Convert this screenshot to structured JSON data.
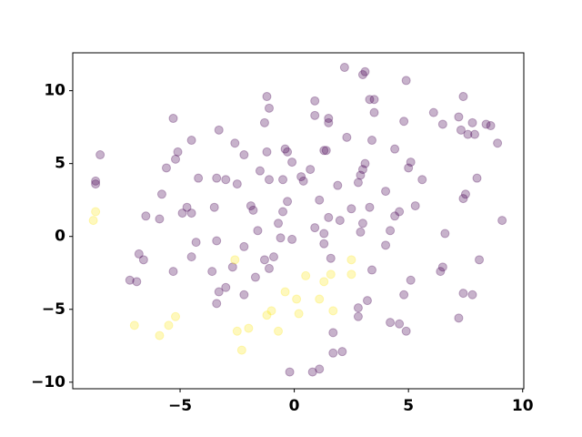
{
  "chart_data": {
    "type": "scatter",
    "xlim": [
      -9.7,
      10.05
    ],
    "ylim": [
      -10.45,
      12.6
    ],
    "xticks": [
      {
        "value": -5,
        "label": "−5"
      },
      0,
      5,
      10
    ],
    "yticks": [
      {
        "value": -10,
        "label": "−10"
      },
      {
        "value": -5,
        "label": "−5"
      },
      0,
      5,
      10
    ],
    "alpha": 0.3,
    "series": [
      {
        "color": "#440154",
        "x": [
          -8.5,
          -8.7,
          -8.7,
          -5.3,
          -4.5,
          -5.2,
          -5.6,
          -5.1,
          -4.2,
          -3.4,
          -3.3,
          -2.6,
          -2.2,
          -3.0,
          -2.5,
          -3.5,
          -4.7,
          -4.9,
          -4.5,
          -6.5,
          -5.8,
          -5.9,
          -6.8,
          -6.6,
          -7.2,
          -6.9,
          -5.3,
          -4.5,
          -4.3,
          -3.6,
          -3.4,
          -3.3,
          -3.4,
          -3.0,
          -2.7,
          -2.2,
          -2.2,
          -1.7,
          -1.3,
          -1.6,
          -1.9,
          -1.8,
          -1.5,
          -1.1,
          -1.2,
          -1.3,
          -1.1,
          -1.2,
          0.9,
          0.9,
          1.5,
          1.5,
          1.4,
          1.3,
          2.3,
          1.9,
          1.1,
          0.7,
          0.4,
          0.3,
          -0.4,
          -0.3,
          -0.1,
          -0.5,
          -0.3,
          -0.5,
          -0.7,
          -0.1,
          -0.6,
          -0.9,
          -1.1,
          1.3,
          1.3,
          1.6,
          0.9,
          1.5,
          2.0,
          2.8,
          2.9,
          3.0,
          3.1,
          3.4,
          3.0,
          3.1,
          3.3,
          3.5,
          3.5,
          2.2,
          4.9,
          4.8,
          4.4,
          5.0,
          5.1,
          4.6,
          4.4,
          4.0,
          4.2,
          3.0,
          2.9,
          3.4,
          3.2,
          2.8,
          2.8,
          1.7,
          1.7,
          2.1,
          1.1,
          0.8,
          -0.2,
          4.2,
          4.6,
          4.9,
          4.8,
          5.1,
          5.3,
          5.6,
          6.1,
          6.5,
          6.6,
          6.5,
          6.4,
          7.2,
          7.3,
          7.4,
          7.6,
          7.8,
          7.9,
          8.4,
          8.6,
          7.5,
          7.4,
          8.0,
          8.9,
          9.1,
          8.1,
          7.4,
          7.8,
          7.2,
          4.0,
          2.5,
          3.3
        ],
        "values": [
          5.6,
          3.8,
          3.6,
          8.1,
          6.6,
          5.3,
          4.7,
          5.8,
          4.0,
          4.0,
          7.3,
          6.4,
          5.6,
          3.9,
          3.6,
          2.0,
          2.0,
          1.6,
          1.6,
          1.4,
          2.9,
          1.2,
          -1.2,
          -1.6,
          -3.0,
          -3.1,
          -2.4,
          -1.4,
          -0.4,
          -2.4,
          -0.3,
          -3.8,
          -4.6,
          -3.5,
          -2.1,
          -0.7,
          -4.0,
          -2.8,
          -1.6,
          0.4,
          2.1,
          1.8,
          4.5,
          3.9,
          5.8,
          7.8,
          8.8,
          9.6,
          9.3,
          8.3,
          7.8,
          8.1,
          5.9,
          5.9,
          6.8,
          3.5,
          2.5,
          4.6,
          3.8,
          4.1,
          6.0,
          5.8,
          5.1,
          3.9,
          2.4,
          1.7,
          0.9,
          -0.2,
          -0.1,
          -1.4,
          -2.2,
          0.2,
          -0.5,
          -1.5,
          0.6,
          1.3,
          1.1,
          3.7,
          4.2,
          4.6,
          5.0,
          6.6,
          11.1,
          11.3,
          9.4,
          9.4,
          8.5,
          11.6,
          10.7,
          7.9,
          6.0,
          4.7,
          5.1,
          1.7,
          1.4,
          -0.6,
          0.4,
          0.9,
          0.3,
          -2.3,
          -4.4,
          -4.9,
          -5.5,
          -6.6,
          -8.0,
          -7.9,
          -9.1,
          -9.3,
          -9.3,
          -5.9,
          -6.0,
          -6.5,
          -4.0,
          -3.0,
          2.1,
          3.9,
          8.5,
          7.7,
          0.2,
          -2.1,
          -2.4,
          8.2,
          7.3,
          9.6,
          7.0,
          7.8,
          7.0,
          7.7,
          7.6,
          2.9,
          2.6,
          4.0,
          6.4,
          1.1,
          -1.6,
          -3.9,
          -4.0,
          -5.6,
          3.1,
          1.9,
          2.0
        ]
      },
      {
        "color": "#fde725",
        "x": [
          -8.8,
          -8.7,
          -7.0,
          -5.9,
          -5.5,
          -5.2,
          -2.6,
          -2.5,
          -2.3,
          -2.0,
          -1.2,
          -1.0,
          -0.7,
          -0.4,
          0.1,
          0.2,
          0.5,
          1.1,
          1.3,
          1.7,
          1.6,
          2.5,
          2.5
        ],
        "values": [
          1.1,
          1.7,
          -6.1,
          -6.8,
          -6.1,
          -5.5,
          -1.6,
          -6.5,
          -7.8,
          -6.3,
          -5.4,
          -5.1,
          -6.5,
          -3.8,
          -4.3,
          -5.3,
          -2.7,
          -4.3,
          -3.1,
          -5.1,
          -2.6,
          -1.6,
          -2.6
        ]
      }
    ]
  }
}
